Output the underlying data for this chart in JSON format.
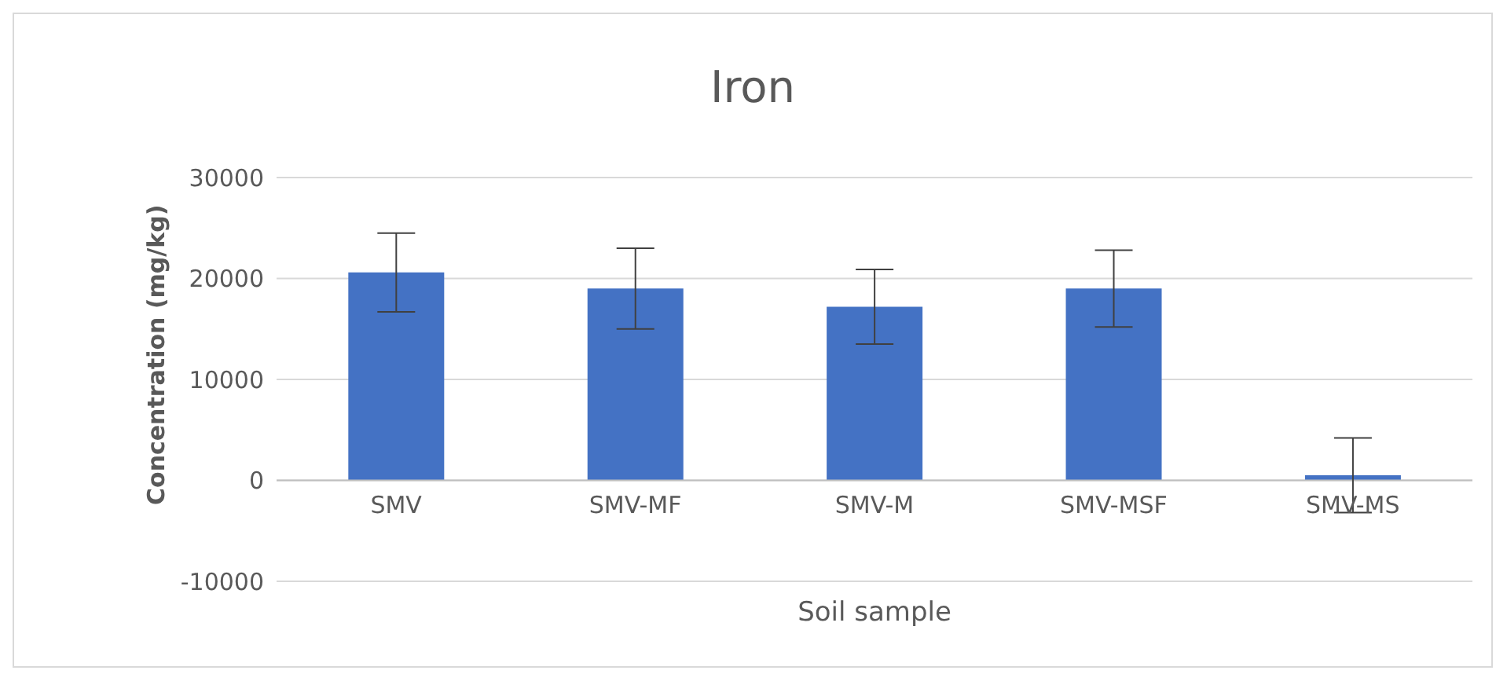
{
  "chart_data": {
    "type": "bar",
    "title": "Iron",
    "xlabel": "Soil sample",
    "ylabel": "Concentration (mg/kg)",
    "categories": [
      "SMV",
      "SMV-MF",
      "SMV-M",
      "SMV-MSF",
      "SMV-MS"
    ],
    "values": [
      20600,
      19000,
      17200,
      19000,
      500
    ],
    "errors": [
      3900,
      4000,
      3700,
      3800,
      3700
    ],
    "color": "#4472c4",
    "ylim": [
      -10000,
      30000
    ],
    "yticks": [
      -10000,
      0,
      10000,
      20000,
      30000
    ],
    "grid": "y",
    "legend": false
  }
}
